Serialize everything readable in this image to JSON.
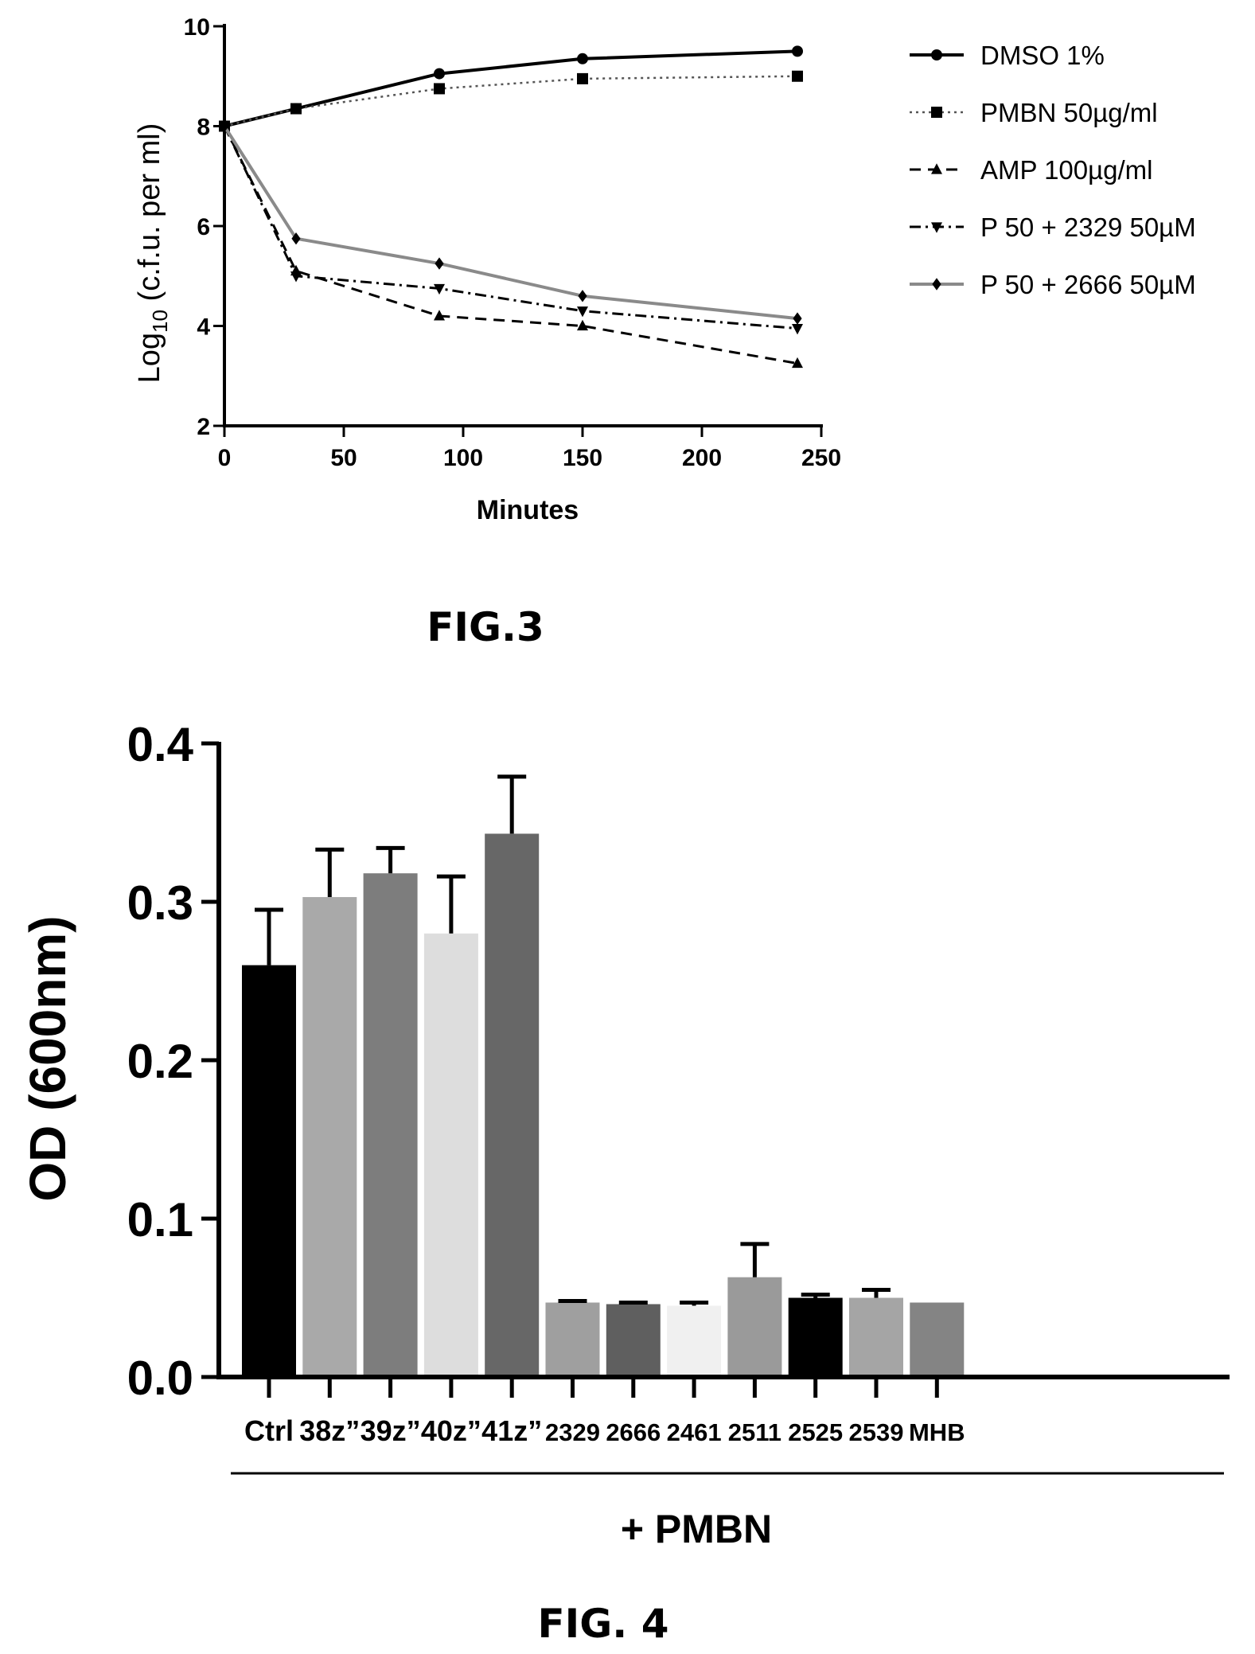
{
  "figures": {
    "fig3_caption": "FIG.3",
    "fig4_caption": "FIG. 4"
  },
  "chart_data": [
    {
      "type": "line",
      "title": "",
      "xlabel": "Minutes",
      "ylabel_prefix": "Log",
      "ylabel_sub": "10",
      "ylabel_suffix": " (c.f.u. per ml)",
      "xlim": [
        0,
        250
      ],
      "ylim": [
        2,
        10
      ],
      "xticks": [
        0,
        50,
        100,
        150,
        200,
        250
      ],
      "yticks": [
        2,
        4,
        6,
        8,
        10
      ],
      "legend_position": "right",
      "grid": false,
      "x": [
        0,
        30,
        90,
        150,
        240
      ],
      "series": [
        {
          "name": "DMSO 1%",
          "values": [
            8.0,
            8.35,
            9.05,
            9.35,
            9.5
          ],
          "marker": "circle",
          "dash": "solid",
          "color": "#000000",
          "width": 4
        },
        {
          "name": "PMBN 50µg/ml",
          "values": [
            8.0,
            8.35,
            8.75,
            8.95,
            9.0
          ],
          "marker": "square",
          "dash": "dotted",
          "color": "#555555",
          "width": 2.5
        },
        {
          "name": "AMP 100µg/ml",
          "values": [
            8.0,
            5.1,
            4.2,
            4.0,
            3.25
          ],
          "marker": "triangle-up",
          "dash": "dashed",
          "color": "#000000",
          "width": 3
        },
        {
          "name": "P 50 + 2329 50µM",
          "values": [
            8.0,
            5.0,
            4.75,
            4.3,
            3.95
          ],
          "marker": "triangle-down",
          "dash": "dashdot",
          "color": "#000000",
          "width": 3
        },
        {
          "name": "P 50 + 2666 50µM",
          "values": [
            8.0,
            5.75,
            5.25,
            4.6,
            4.15
          ],
          "marker": "diamond",
          "dash": "solid",
          "color": "#8a8a8a",
          "width": 4
        }
      ]
    },
    {
      "type": "bar",
      "title": "",
      "xlabel": "",
      "ylabel": "OD (600nm)",
      "group_label": "+ PMBN",
      "ylim": [
        0,
        0.4
      ],
      "yticks": [
        "0.0",
        "0.1",
        "0.2",
        "0.3",
        "0.4"
      ],
      "grid": false,
      "categories": [
        "Ctrl",
        "38z”",
        "39z”",
        "40z”",
        "41z”",
        "2329",
        "2666",
        "2461",
        "2511",
        "2525",
        "2539",
        "MHB"
      ],
      "values": [
        0.26,
        0.303,
        0.318,
        0.28,
        0.343,
        0.047,
        0.046,
        0.045,
        0.063,
        0.05,
        0.05,
        0.047
      ],
      "errors": [
        0.035,
        0.03,
        0.016,
        0.036,
        0.036,
        0.001,
        0.001,
        0.002,
        0.021,
        0.002,
        0.005,
        0.0
      ],
      "bar_colors": [
        "#000000",
        "#a9a9a9",
        "#7d7d7d",
        "#dddddd",
        "#676767",
        "#9f9f9f",
        "#5f5f5f",
        "#f0f0f0",
        "#9a9a9a",
        "#000000",
        "#a5a5a5",
        "#848484"
      ]
    }
  ]
}
